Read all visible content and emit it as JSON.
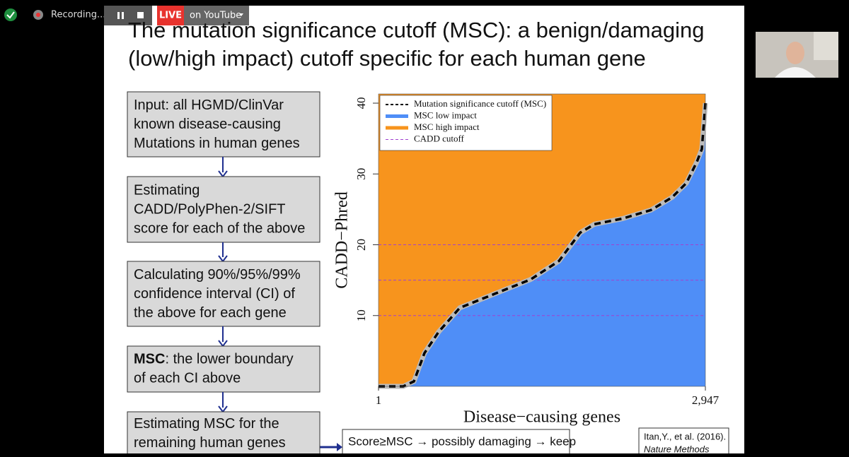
{
  "toolbar": {
    "recording": "Recording...",
    "live": "LIVE",
    "destination": "on YouTube"
  },
  "slide": {
    "title_lines": [
      "The mutation significance cutoff (MSC): a benign/damaging",
      "(low/high impact) cutoff specific for each human gene"
    ],
    "flow": [
      {
        "lines": [
          "Input: all HGMD/ClinVar",
          "known disease-causing",
          "Mutations in human genes"
        ]
      },
      {
        "lines": [
          "Estimating",
          "CADD/PolyPhen-2/SIFT",
          "score for each of the above"
        ]
      },
      {
        "lines": [
          "Calculating 90%/95%/99%",
          "confidence interval (CI) of",
          "the above for each gene"
        ]
      },
      {
        "bold": "MSC",
        "lines": [
          ": the lower boundary",
          "of each CI above"
        ]
      },
      {
        "lines": [
          "Estimating MSC for the",
          "remaining human genes"
        ]
      }
    ],
    "result": "Score≥MSC → possibly damaging → keep",
    "citation": [
      "Itan,Y., et al. (2016).",
      "Nature Methods"
    ]
  },
  "chart_data": {
    "type": "area",
    "xlabel": "Disease−causing genes",
    "ylabel": "CADD−Phred",
    "x": [
      1,
      224,
      320,
      415,
      543,
      734,
      1053,
      1372,
      1627,
      1818,
      1946,
      2201,
      2456,
      2647,
      2775,
      2870,
      2915,
      2947
    ],
    "series": [
      {
        "name": "Mutation significance cutoff (MSC)",
        "color": "#000000",
        "values": [
          0,
          0,
          0.7,
          4.7,
          7.7,
          11.1,
          13.1,
          15.1,
          17.7,
          21.7,
          22.9,
          23.7,
          24.9,
          26.7,
          28.7,
          31.7,
          33.5,
          40
        ]
      }
    ],
    "fills": [
      {
        "name": "MSC low impact",
        "color": "#4f8ef7"
      },
      {
        "name": "MSC high impact",
        "color": "#f7941d"
      }
    ],
    "hlines": {
      "name": "CADD cutoff",
      "color": "#a040d0",
      "values": [
        10,
        15,
        20
      ]
    },
    "xlim": [
      1,
      2947
    ],
    "ylim": [
      0,
      41.3
    ],
    "xticks": [
      1,
      {
        "value": 2947,
        "label": "2,947"
      }
    ],
    "yticks": [
      10,
      20,
      30,
      40
    ],
    "legend": "top-left"
  }
}
